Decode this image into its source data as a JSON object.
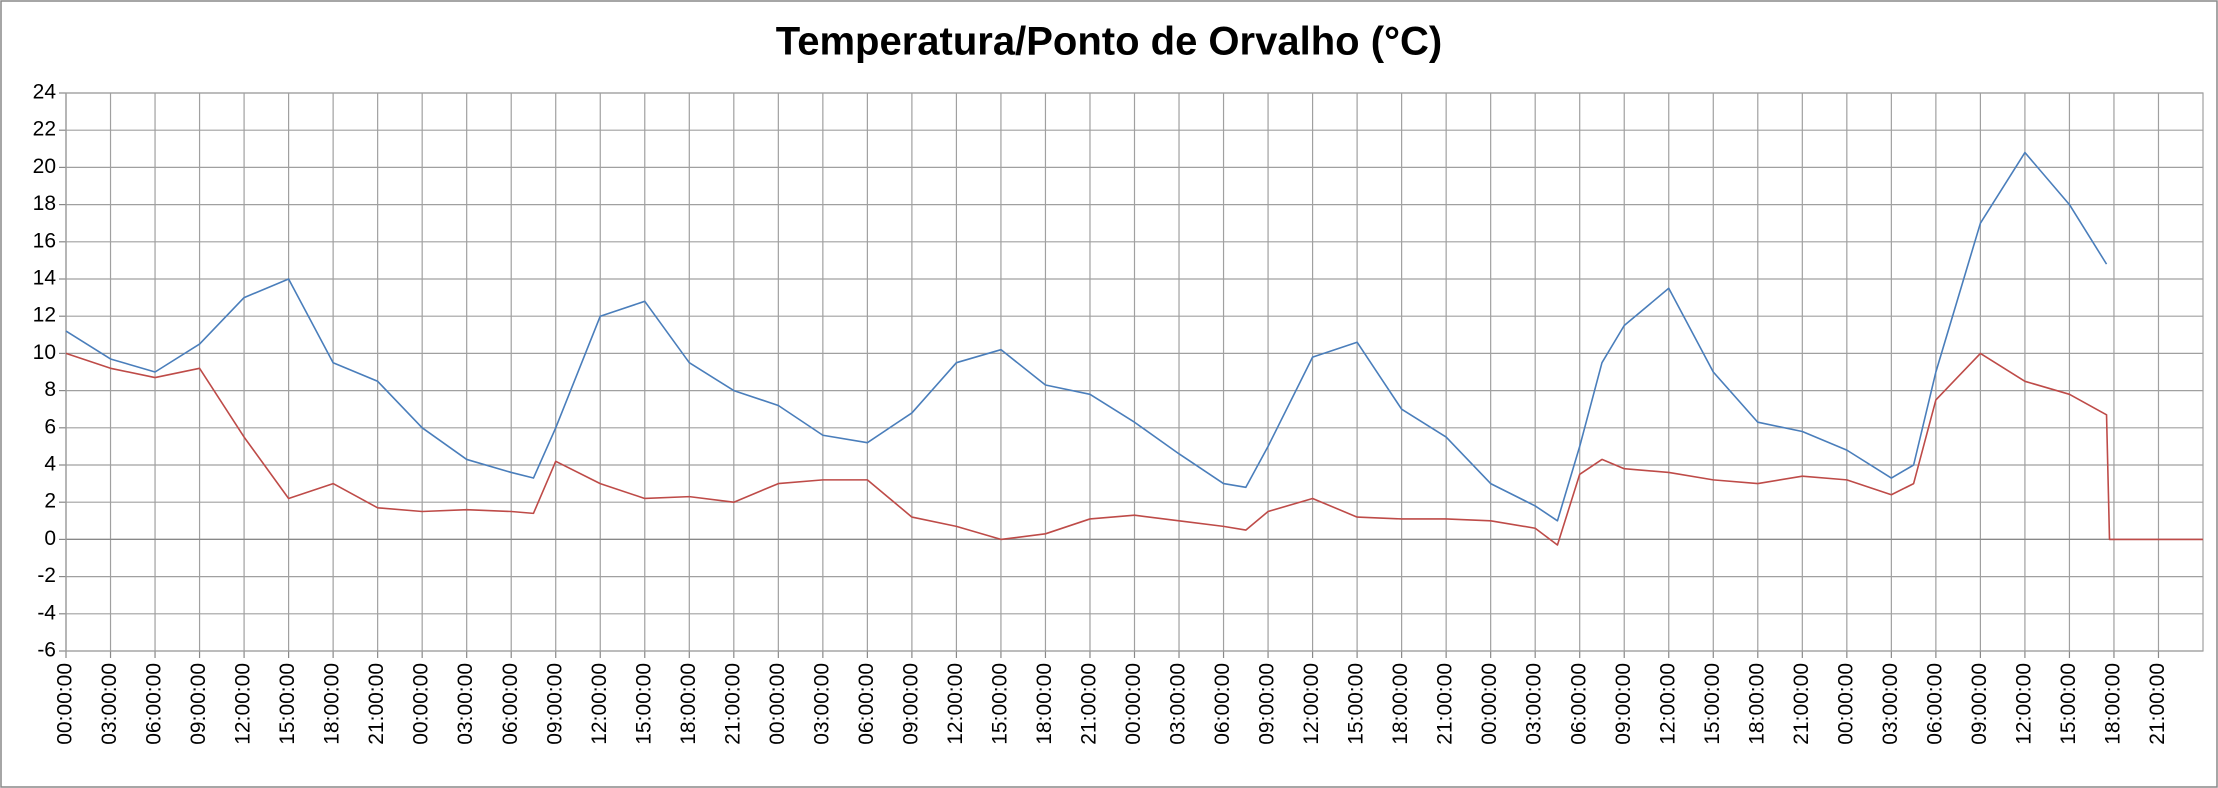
{
  "chart_data": {
    "type": "line",
    "title": "Temperatura/Ponto de Orvalho (°C)",
    "x": [
      0,
      3,
      6,
      9,
      12,
      15,
      18,
      21,
      24,
      27,
      30,
      31.5,
      33,
      36,
      39,
      42,
      45,
      48,
      51,
      54,
      57,
      60,
      63,
      66,
      69,
      72,
      75,
      78,
      79.5,
      81,
      84,
      87,
      90,
      93,
      96,
      99,
      100.5,
      102,
      103.5,
      105,
      108,
      111,
      114,
      117,
      120,
      123,
      124.5,
      126,
      129,
      132,
      135,
      137.5,
      137.7,
      144
    ],
    "series": [
      {
        "color": "#4a7ebb",
        "values": [
          11.2,
          9.7,
          9.0,
          10.5,
          13.0,
          14.0,
          9.5,
          8.5,
          6.0,
          4.3,
          3.6,
          3.3,
          6.0,
          12.0,
          12.8,
          9.5,
          8.0,
          7.2,
          5.6,
          5.2,
          6.8,
          9.5,
          10.2,
          8.3,
          7.8,
          6.3,
          4.6,
          3.0,
          2.8,
          5.0,
          9.8,
          10.6,
          7.0,
          5.5,
          3.0,
          1.8,
          1.0,
          5.0,
          9.5,
          11.5,
          13.5,
          9.0,
          6.3,
          5.8,
          4.8,
          3.3,
          4.0,
          9.0,
          17.0,
          20.8,
          18.0,
          14.8,
          null,
          null
        ]
      },
      {
        "color": "#be4b48",
        "values": [
          10.0,
          9.2,
          8.7,
          9.2,
          5.5,
          2.2,
          3.0,
          1.7,
          1.5,
          1.6,
          1.5,
          1.4,
          4.2,
          3.0,
          2.2,
          2.3,
          2.0,
          3.0,
          3.2,
          3.2,
          1.2,
          0.7,
          0.0,
          0.3,
          1.1,
          1.3,
          1.0,
          0.7,
          0.5,
          1.5,
          2.2,
          1.2,
          1.1,
          1.1,
          1.0,
          0.6,
          -0.3,
          3.5,
          4.3,
          3.8,
          3.6,
          3.2,
          3.0,
          3.4,
          3.2,
          2.4,
          3.0,
          7.5,
          10.0,
          8.5,
          7.8,
          6.7,
          0,
          0
        ]
      }
    ],
    "xlim": [
      0,
      144
    ],
    "xticks": [
      {
        "value": 0,
        "label": "00:00:00"
      },
      {
        "value": 3,
        "label": "03:00:00"
      },
      {
        "value": 6,
        "label": "06:00:00"
      },
      {
        "value": 9,
        "label": "09:00:00"
      },
      {
        "value": 12,
        "label": "12:00:00"
      },
      {
        "value": 15,
        "label": "15:00:00"
      },
      {
        "value": 18,
        "label": "18:00:00"
      },
      {
        "value": 21,
        "label": "21:00:00"
      },
      {
        "value": 24,
        "label": "00:00:00"
      },
      {
        "value": 27,
        "label": "03:00:00"
      },
      {
        "value": 30,
        "label": "06:00:00"
      },
      {
        "value": 33,
        "label": "09:00:00"
      },
      {
        "value": 36,
        "label": "12:00:00"
      },
      {
        "value": 39,
        "label": "15:00:00"
      },
      {
        "value": 42,
        "label": "18:00:00"
      },
      {
        "value": 45,
        "label": "21:00:00"
      },
      {
        "value": 48,
        "label": "00:00:00"
      },
      {
        "value": 51,
        "label": "03:00:00"
      },
      {
        "value": 54,
        "label": "06:00:00"
      },
      {
        "value": 57,
        "label": "09:00:00"
      },
      {
        "value": 60,
        "label": "12:00:00"
      },
      {
        "value": 63,
        "label": "15:00:00"
      },
      {
        "value": 66,
        "label": "18:00:00"
      },
      {
        "value": 69,
        "label": "21:00:00"
      },
      {
        "value": 72,
        "label": "00:00:00"
      },
      {
        "value": 75,
        "label": "03:00:00"
      },
      {
        "value": 78,
        "label": "06:00:00"
      },
      {
        "value": 81,
        "label": "09:00:00"
      },
      {
        "value": 84,
        "label": "12:00:00"
      },
      {
        "value": 87,
        "label": "15:00:00"
      },
      {
        "value": 90,
        "label": "18:00:00"
      },
      {
        "value": 93,
        "label": "21:00:00"
      },
      {
        "value": 96,
        "label": "00:00:00"
      },
      {
        "value": 99,
        "label": "03:00:00"
      },
      {
        "value": 102,
        "label": "06:00:00"
      },
      {
        "value": 105,
        "label": "09:00:00"
      },
      {
        "value": 108,
        "label": "12:00:00"
      },
      {
        "value": 111,
        "label": "15:00:00"
      },
      {
        "value": 114,
        "label": "18:00:00"
      },
      {
        "value": 117,
        "label": "21:00:00"
      },
      {
        "value": 120,
        "label": "00:00:00"
      },
      {
        "value": 123,
        "label": "03:00:00"
      },
      {
        "value": 126,
        "label": "06:00:00"
      },
      {
        "value": 129,
        "label": "09:00:00"
      },
      {
        "value": 132,
        "label": "12:00:00"
      },
      {
        "value": 135,
        "label": "15:00:00"
      },
      {
        "value": 138,
        "label": "18:00:00"
      },
      {
        "value": 141,
        "label": "21:00:00"
      }
    ],
    "ylim": [
      -6,
      24
    ],
    "yticks": [
      -6,
      -4,
      -2,
      0,
      2,
      4,
      6,
      8,
      10,
      12,
      14,
      16,
      18,
      20,
      22,
      24
    ],
    "grid": true
  }
}
